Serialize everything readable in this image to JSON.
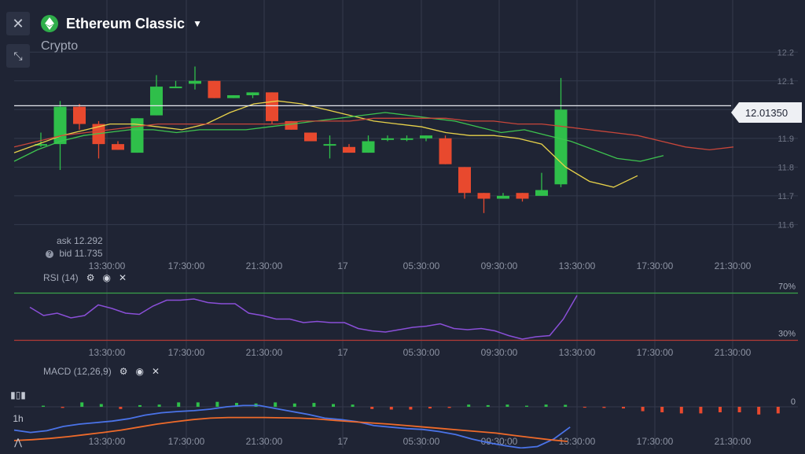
{
  "header": {
    "title": "Ethereum Classic",
    "subtitle": "Crypto"
  },
  "icons": {
    "close": "close-icon",
    "collapse": "collapse-icon",
    "coin": "ethereum-classic-icon",
    "caret": "chevron-down-icon",
    "settings": "gear-icon",
    "visibility": "eye-icon",
    "remove": "close-icon",
    "help": "question-icon"
  },
  "quote": {
    "ask_label": "ask",
    "ask": "12.292",
    "bid_label": "bid",
    "bid": "11.735"
  },
  "price_tag": "12.01350",
  "indicators": {
    "rsi": "RSI (14)",
    "macd": "MACD (12,26,9)"
  },
  "side_tools": {
    "interval": "1h"
  },
  "colors": {
    "up": "#2fbf4a",
    "down": "#e8492e",
    "ma_fast": "#e8d24a",
    "ma_mid": "#3ec44f",
    "ma_slow": "#c8463a",
    "rsi": "#8a4fd8",
    "macd_line": "#4a73e8",
    "signal_line": "#ee6a2a",
    "band_upper": "#3aa24a",
    "band_lower": "#b23a36",
    "grid": "#343a4c",
    "bg": "#1f2434"
  },
  "chart_data": [
    {
      "type": "candlestick",
      "title": "Ethereum Classic",
      "x_ticks": [
        "13:30:00",
        "17:30:00",
        "21:30:00",
        "17",
        "05:30:00",
        "09:30:00",
        "13:30:00",
        "17:30:00",
        "21:30:00"
      ],
      "y_ticks": [
        "12.2",
        "12.1",
        "12",
        "11.9",
        "11.8",
        "11.7",
        "11.6"
      ],
      "ylim": [
        11.56,
        12.25
      ],
      "candles": [
        {
          "o": 11.88,
          "h": 11.92,
          "l": 11.87,
          "c": 11.88
        },
        {
          "o": 11.88,
          "h": 12.03,
          "l": 11.79,
          "c": 12.01
        },
        {
          "o": 12.01,
          "h": 12.02,
          "l": 11.93,
          "c": 11.95
        },
        {
          "o": 11.95,
          "h": 11.96,
          "l": 11.83,
          "c": 11.88
        },
        {
          "o": 11.88,
          "h": 11.89,
          "l": 11.86,
          "c": 11.86
        },
        {
          "o": 11.85,
          "h": 11.97,
          "l": 11.85,
          "c": 11.97
        },
        {
          "o": 11.98,
          "h": 12.12,
          "l": 11.98,
          "c": 12.08
        },
        {
          "o": 12.08,
          "h": 12.1,
          "l": 12.08,
          "c": 12.08
        },
        {
          "o": 12.09,
          "h": 12.15,
          "l": 12.07,
          "c": 12.1
        },
        {
          "o": 12.1,
          "h": 12.1,
          "l": 12.04,
          "c": 12.04
        },
        {
          "o": 12.04,
          "h": 12.05,
          "l": 12.04,
          "c": 12.05
        },
        {
          "o": 12.05,
          "h": 12.06,
          "l": 12.04,
          "c": 12.06
        },
        {
          "o": 12.06,
          "h": 12.06,
          "l": 11.95,
          "c": 11.96
        },
        {
          "o": 11.96,
          "h": 11.96,
          "l": 11.93,
          "c": 11.93
        },
        {
          "o": 11.92,
          "h": 11.92,
          "l": 11.89,
          "c": 11.89
        },
        {
          "o": 11.88,
          "h": 11.91,
          "l": 11.83,
          "c": 11.88
        },
        {
          "o": 11.87,
          "h": 11.88,
          "l": 11.85,
          "c": 11.85
        },
        {
          "o": 11.85,
          "h": 11.91,
          "l": 11.85,
          "c": 11.89
        },
        {
          "o": 11.9,
          "h": 11.91,
          "l": 11.89,
          "c": 11.9
        },
        {
          "o": 11.9,
          "h": 11.91,
          "l": 11.89,
          "c": 11.9
        },
        {
          "o": 11.9,
          "h": 11.91,
          "l": 11.89,
          "c": 11.91
        },
        {
          "o": 11.9,
          "h": 11.91,
          "l": 11.81,
          "c": 11.81
        },
        {
          "o": 11.8,
          "h": 11.8,
          "l": 11.69,
          "c": 11.71
        },
        {
          "o": 11.71,
          "h": 11.71,
          "l": 11.64,
          "c": 11.69
        },
        {
          "o": 11.69,
          "h": 11.71,
          "l": 11.69,
          "c": 11.7
        },
        {
          "o": 11.71,
          "h": 11.71,
          "l": 11.68,
          "c": 11.69
        },
        {
          "o": 11.7,
          "h": 11.78,
          "l": 11.7,
          "c": 11.72
        },
        {
          "o": 11.74,
          "h": 12.11,
          "l": 11.73,
          "c": 12.0
        }
      ],
      "series": [
        {
          "color_key": "ma_fast",
          "values": [
            11.85,
            11.88,
            11.91,
            11.93,
            11.95,
            11.95,
            11.94,
            11.93,
            11.95,
            11.99,
            12.02,
            12.03,
            12.02,
            12.0,
            11.98,
            11.96,
            11.95,
            11.94,
            11.92,
            11.91,
            11.91,
            11.9,
            11.88,
            11.8,
            11.75,
            11.73,
            11.77
          ]
        },
        {
          "color_key": "ma_mid",
          "values": [
            11.82,
            11.86,
            11.89,
            11.91,
            11.92,
            11.93,
            11.93,
            11.92,
            11.93,
            11.93,
            11.93,
            11.94,
            11.95,
            11.96,
            11.97,
            11.98,
            11.99,
            11.98,
            11.97,
            11.96,
            11.94,
            11.92,
            11.93,
            11.91,
            11.89,
            11.86,
            11.83,
            11.82,
            11.84
          ]
        },
        {
          "color_key": "ma_slow",
          "values": [
            11.87,
            11.89,
            11.91,
            11.92,
            11.93,
            11.94,
            11.95,
            11.95,
            11.95,
            11.95,
            11.95,
            11.95,
            11.96,
            11.96,
            11.96,
            11.97,
            11.97,
            11.97,
            11.97,
            11.96,
            11.96,
            11.95,
            11.95,
            11.94,
            11.93,
            11.92,
            11.91,
            11.89,
            11.87,
            11.86,
            11.87
          ]
        }
      ],
      "current_price": 12.0135
    },
    {
      "type": "line",
      "title": "RSI (14)",
      "ylim": [
        25,
        75
      ],
      "levels": [
        {
          "value": 70,
          "label": "70%"
        },
        {
          "value": 30,
          "label": "30%"
        }
      ],
      "series": [
        {
          "color_key": "rsi",
          "values": [
            58,
            51,
            53,
            49,
            51,
            60,
            57,
            53,
            52,
            59,
            64,
            64,
            65,
            62,
            61,
            61,
            53,
            51,
            48,
            48,
            45,
            46,
            45,
            45,
            40,
            38,
            37,
            39,
            41,
            42,
            44,
            40,
            39,
            40,
            38,
            34,
            31,
            33,
            34,
            48,
            68
          ]
        }
      ]
    },
    {
      "type": "bar+line",
      "title": "MACD (12,26,9)",
      "ylim": [
        -1,
        1
      ],
      "level_label": "0",
      "histogram": [
        0.1,
        -0.1,
        0.4,
        0.25,
        -0.2,
        0.15,
        0.2,
        0.4,
        0.4,
        0.45,
        0.35,
        0.3,
        0.4,
        0.3,
        0.35,
        0.25,
        0.2,
        -0.2,
        -0.25,
        -0.25,
        -0.15,
        -0.1,
        0.2,
        0.15,
        0.2,
        0.1,
        0.2,
        0.18,
        -0.08,
        -0.1,
        -0.15,
        -0.4,
        -0.5,
        -0.6,
        -0.6,
        -0.5,
        -0.5,
        -0.7,
        -0.6
      ],
      "series": [
        {
          "color_key": "macd_line",
          "values": [
            -0.2,
            -0.28,
            -0.22,
            -0.08,
            0.0,
            0.05,
            0.1,
            0.18,
            0.3,
            0.38,
            0.42,
            0.45,
            0.5,
            0.58,
            0.62,
            0.62,
            0.52,
            0.42,
            0.32,
            0.2,
            0.15,
            0.08,
            -0.05,
            -0.1,
            -0.15,
            -0.18,
            -0.25,
            -0.35,
            -0.5,
            -0.62,
            -0.72,
            -0.8,
            -0.75,
            -0.5,
            -0.1
          ]
        },
        {
          "color_key": "signal_line",
          "values": [
            -0.55,
            -0.52,
            -0.48,
            -0.42,
            -0.35,
            -0.28,
            -0.2,
            -0.1,
            0.0,
            0.08,
            0.15,
            0.2,
            0.22,
            0.22,
            0.22,
            0.21,
            0.2,
            0.17,
            0.12,
            0.08,
            0.04,
            0.0,
            -0.05,
            -0.1,
            -0.15,
            -0.2,
            -0.25,
            -0.3,
            -0.38,
            -0.45,
            -0.52,
            -0.58
          ]
        }
      ]
    }
  ]
}
